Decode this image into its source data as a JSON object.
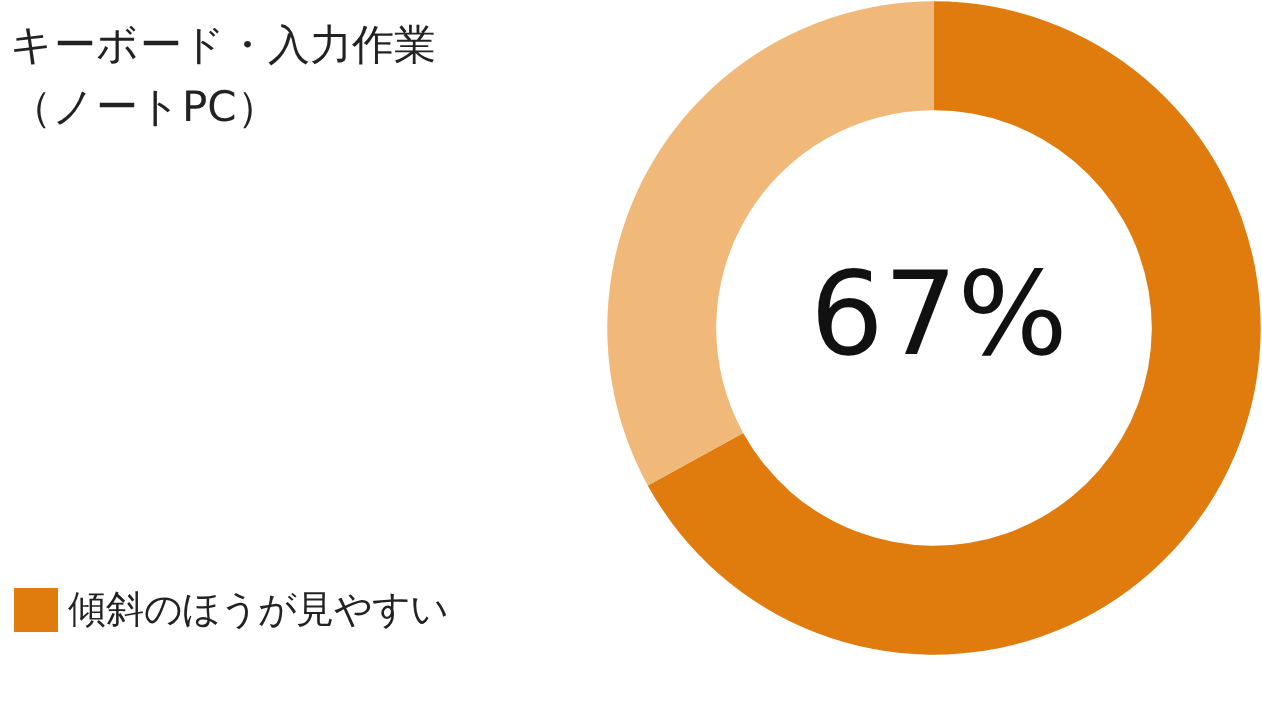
{
  "chart_data": {
    "type": "donut",
    "title": "キーボード・入力作業（ノートPC）",
    "categories": [
      "傾斜のほうが見やすい",
      null
    ],
    "values": [
      67,
      33
    ],
    "colors": [
      "#e07b0e",
      "#f0b97a"
    ],
    "annotations": [
      "67%"
    ],
    "legend": "bottom left"
  }
}
